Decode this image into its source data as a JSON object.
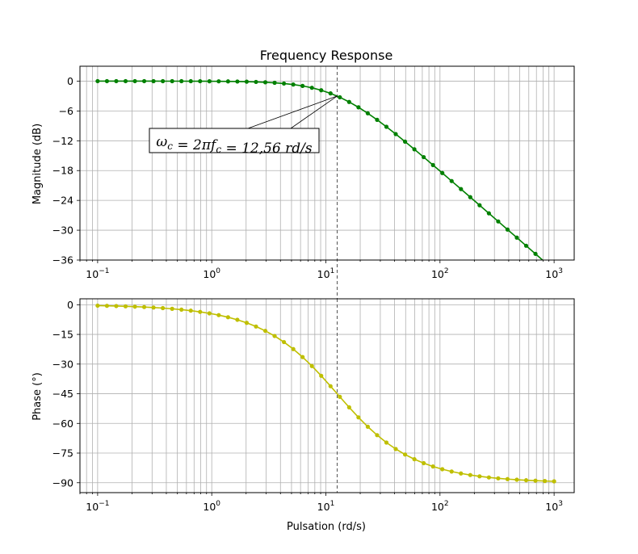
{
  "chart_data": [
    {
      "type": "line",
      "title": "Frequency Response",
      "xlabel": "",
      "ylabel": "Magnitude (dB)",
      "xscale": "log",
      "xlim": [
        0.07,
        1500
      ],
      "ylim": [
        -36,
        3
      ],
      "xticks": [
        0.1,
        1,
        10,
        100,
        1000
      ],
      "xtick_labels": [
        {
          "base": "10",
          "exp": "−1"
        },
        {
          "base": "10",
          "exp": "0"
        },
        {
          "base": "10",
          "exp": "1"
        },
        {
          "base": "10",
          "exp": "2"
        },
        {
          "base": "10",
          "exp": "3"
        }
      ],
      "yticks": [
        0,
        -6,
        -12,
        -18,
        -24,
        -30,
        -36
      ],
      "ytick_labels": [
        "0",
        "−6",
        "−12",
        "−18",
        "−24",
        "−30",
        "−36"
      ],
      "grid": true,
      "series": [
        {
          "color": "#008000",
          "marker": "circle",
          "x_range": [
            0.1,
            1000
          ],
          "points_per_series": 50,
          "cutoff_rad_s": 12.56,
          "function": "-10*log10(1+(w/wc)^2)"
        }
      ],
      "vline": {
        "x": 12.56,
        "style": "dashed",
        "color": "#555555"
      },
      "annotation": {
        "text": "ω_c = 2πf_c = 12,56 rd/s",
        "parts": [
          {
            "t": "ω",
            "sub": "c"
          },
          {
            "t": " = 2π",
            "sub": ""
          },
          {
            "t": "f",
            "sub": "c"
          },
          {
            "t": " = 12,56 ",
            "sub": ""
          },
          {
            "t": "rd/s",
            "sub": ""
          }
        ],
        "target": {
          "x": 12.56,
          "y": -3.0
        },
        "text_anchor": {
          "x": 1.5,
          "y": -12.2
        }
      }
    },
    {
      "type": "line",
      "title": "",
      "xlabel": "Pulsation (rd/s)",
      "ylabel": "Phase (°)",
      "xscale": "log",
      "xlim": [
        0.07,
        1500
      ],
      "ylim": [
        -95,
        3
      ],
      "xticks": [
        0.1,
        1,
        10,
        100,
        1000
      ],
      "xtick_labels": [
        {
          "base": "10",
          "exp": "−1"
        },
        {
          "base": "10",
          "exp": "0"
        },
        {
          "base": "10",
          "exp": "1"
        },
        {
          "base": "10",
          "exp": "2"
        },
        {
          "base": "10",
          "exp": "3"
        }
      ],
      "yticks": [
        0,
        -15,
        -30,
        -45,
        -60,
        -75,
        -90
      ],
      "ytick_labels": [
        "0",
        "−15",
        "−30",
        "−45",
        "−60",
        "−75",
        "−90"
      ],
      "grid": true,
      "series": [
        {
          "color": "#BFBF00",
          "marker": "circle",
          "x_range": [
            0.1,
            1000
          ],
          "points_per_series": 50,
          "cutoff_rad_s": 12.56,
          "function": "-atan(w/wc) in degrees"
        }
      ],
      "vline": {
        "x": 12.56,
        "style": "dashed",
        "color": "#555555"
      }
    }
  ]
}
